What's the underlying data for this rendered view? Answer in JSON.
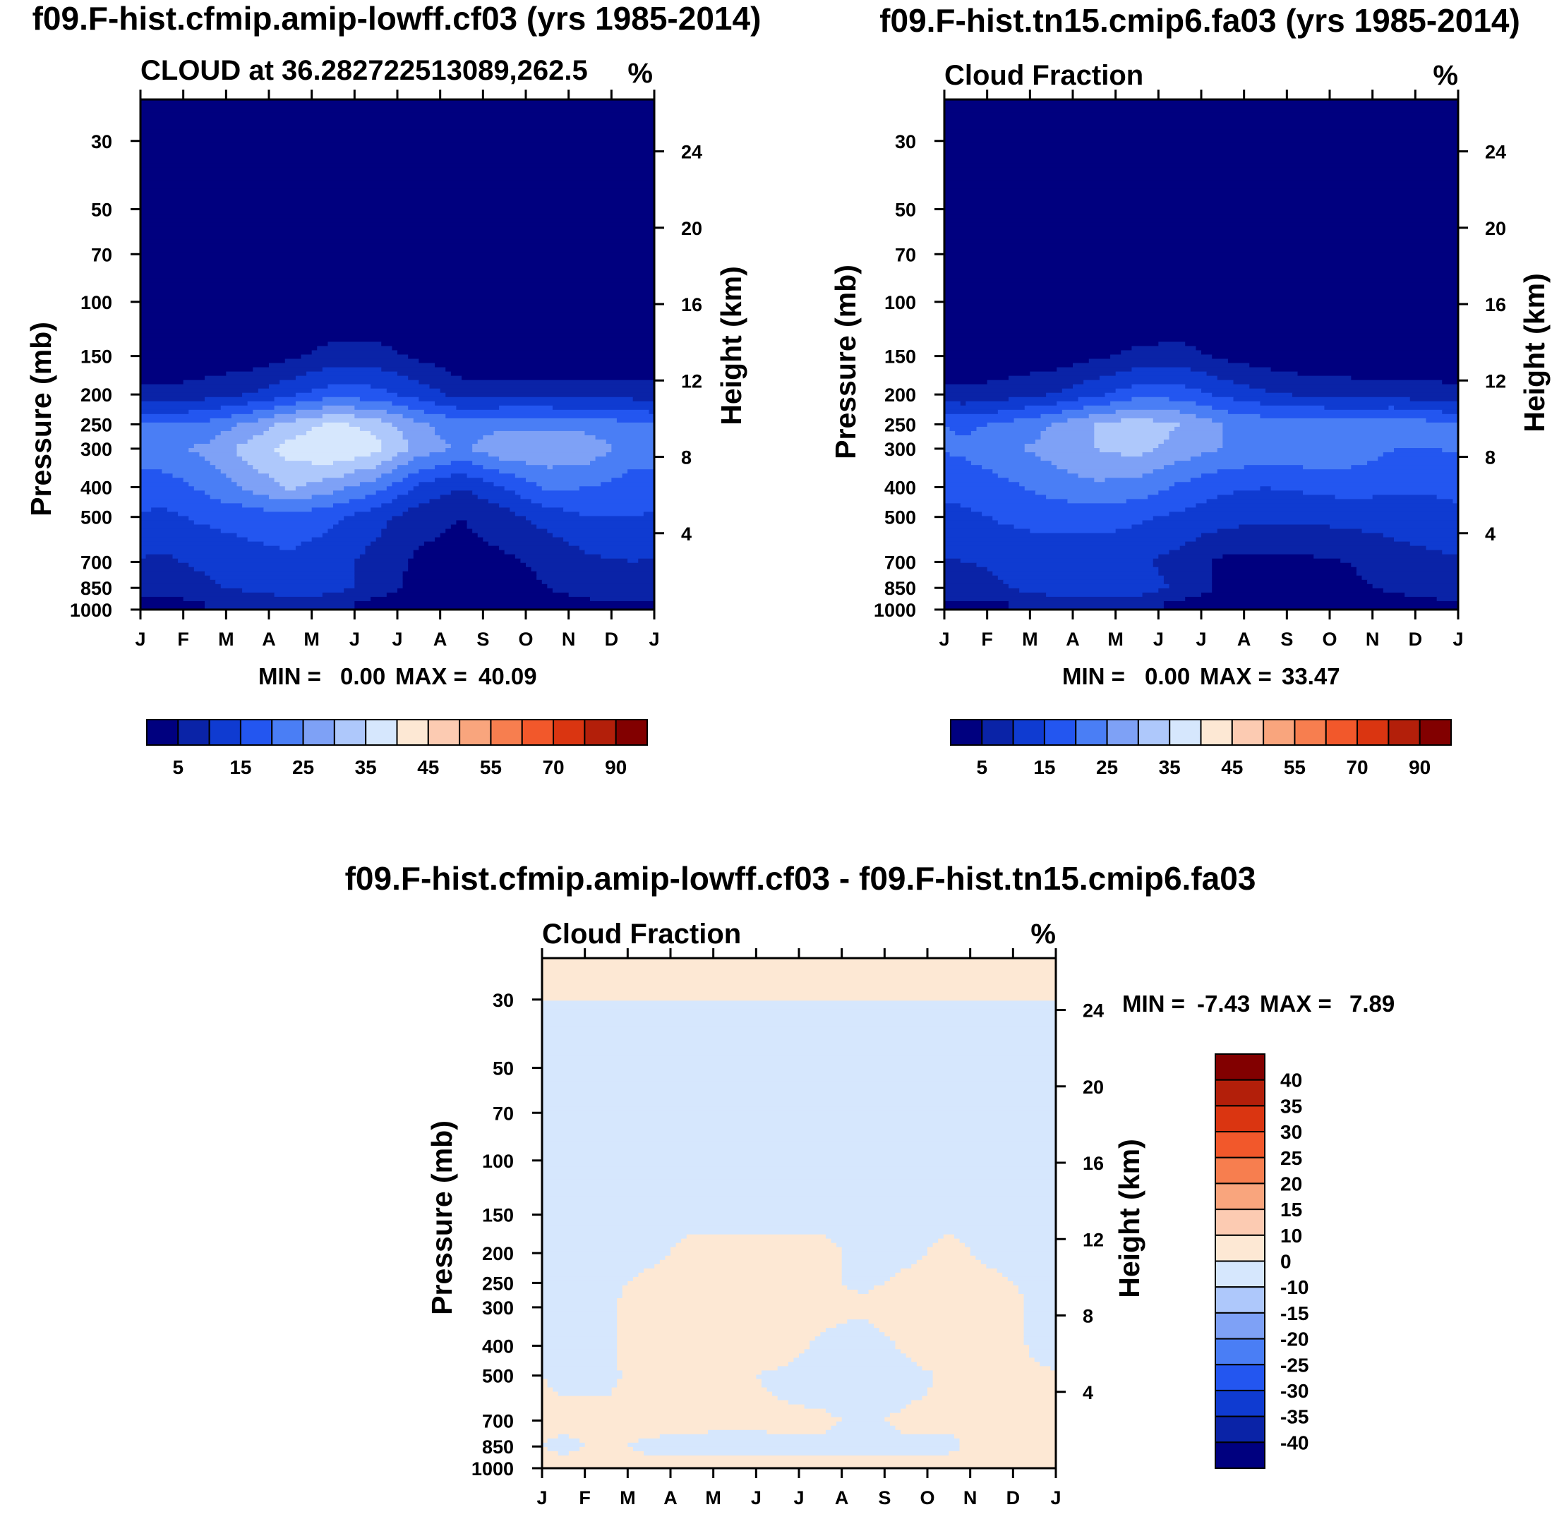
{
  "figure": {
    "panel_a_title": "f09.F-hist.cfmip.amip-lowff.cf03 (yrs 1985-2014)",
    "panel_b_title": "f09.F-hist.tn15.cmip6.fa03 (yrs 1985-2014)",
    "panel_c_title": "f09.F-hist.cfmip.amip-lowff.cf03 - f09.F-hist.tn15.cmip6.fa03"
  },
  "colors": {
    "full_scale": [
      "#00007f",
      "#0a23a7",
      "#0f3bd1",
      "#2356f0",
      "#4a7ef5",
      "#7ea1f6",
      "#aec8fb",
      "#d6e7fd",
      "#fde8d4",
      "#fccbb2",
      "#f9a57d",
      "#f77e4f",
      "#f2582b",
      "#da3511",
      "#b31f0a",
      "#820000"
    ],
    "diff_scale": [
      "#00007f",
      "#0a23a7",
      "#0f3bd1",
      "#2356f0",
      "#4a7ef5",
      "#7ea1f6",
      "#aec8fb",
      "#d6e7fd",
      "#fde8d4",
      "#fccbb2",
      "#f9a57d",
      "#f77e4f",
      "#f2582b",
      "#da3511",
      "#b31f0a",
      "#820000"
    ]
  },
  "chart_data": [
    {
      "type": "heatmap",
      "panel": "a",
      "title": "f09.F-hist.cfmip.amip-lowff.cf03 (yrs 1985-2014)",
      "left_label": "CLOUD at 36.282722513089,262.5",
      "units": "%",
      "xlabel": "",
      "ylabel": "Pressure (mb)",
      "y2label": "Height (km)",
      "x_ticks": [
        "J",
        "F",
        "M",
        "A",
        "M",
        "J",
        "J",
        "A",
        "S",
        "O",
        "N",
        "D",
        "J"
      ],
      "y_ticks": [
        30,
        50,
        70,
        100,
        150,
        200,
        250,
        300,
        400,
        500,
        700,
        850,
        1000
      ],
      "y_scale": "log",
      "ylim": [
        1000,
        22
      ],
      "y2_ticks": [
        24,
        20,
        16,
        12,
        8,
        4
      ],
      "min_label": "MIN =",
      "min_value": "0.00",
      "max_label": "MAX =",
      "max_value": "40.09",
      "levels": [
        0,
        5,
        10,
        15,
        20,
        25,
        30,
        35,
        40
      ],
      "colorbar_labels": [
        "5",
        "15",
        "25",
        "35",
        "45",
        "55",
        "70",
        "90"
      ],
      "months": [
        0.5,
        1.5,
        2.5,
        3.5,
        4.5,
        5.5,
        6.5,
        7.5,
        8.5,
        9.5,
        10.5,
        11.5
      ],
      "levels_p": [
        30,
        100,
        150,
        200,
        250,
        300,
        400,
        500,
        700,
        850,
        950
      ],
      "values": [
        [
          0,
          0,
          0,
          0,
          0,
          0,
          0,
          0,
          0,
          0,
          0,
          0
        ],
        [
          0,
          0,
          0,
          0,
          0,
          0,
          0,
          0,
          0,
          0,
          0,
          0
        ],
        [
          1,
          1,
          2,
          4,
          7,
          7,
          4,
          1,
          1,
          1,
          1,
          1
        ],
        [
          6,
          8,
          10,
          14,
          18,
          17,
          13,
          8,
          8,
          8,
          8,
          8
        ],
        [
          20,
          21,
          26,
          32,
          36,
          33,
          26,
          22,
          24,
          24,
          23,
          21
        ],
        [
          24,
          26,
          32,
          37,
          40,
          37,
          28,
          24,
          29,
          29,
          28,
          22
        ],
        [
          17,
          21,
          26,
          31,
          27,
          22,
          14,
          10,
          15,
          21,
          20,
          18
        ],
        [
          14,
          16,
          17,
          18,
          16,
          12,
          7,
          5,
          8,
          12,
          15,
          15
        ],
        [
          9,
          11,
          13,
          14,
          12,
          8,
          4,
          3,
          4,
          6,
          9,
          10
        ],
        [
          7,
          9,
          11,
          13,
          12,
          8,
          3,
          2,
          3,
          5,
          8,
          9
        ],
        [
          3,
          5,
          6,
          8,
          7,
          3,
          2,
          2,
          2,
          3,
          4,
          5
        ]
      ]
    },
    {
      "type": "heatmap",
      "panel": "b",
      "title": "f09.F-hist.tn15.cmip6.fa03 (yrs 1985-2014)",
      "left_label": "Cloud Fraction",
      "units": "%",
      "xlabel": "",
      "ylabel": "Pressure (mb)",
      "y2label": "Height (km)",
      "x_ticks": [
        "J",
        "F",
        "M",
        "A",
        "M",
        "J",
        "J",
        "A",
        "S",
        "O",
        "N",
        "D",
        "J"
      ],
      "y_ticks": [
        30,
        50,
        70,
        100,
        150,
        200,
        250,
        300,
        400,
        500,
        700,
        850,
        1000
      ],
      "y_scale": "log",
      "ylim": [
        1000,
        22
      ],
      "y2_ticks": [
        24,
        20,
        16,
        12,
        8,
        4
      ],
      "min_label": "MIN =",
      "min_value": "0.00",
      "max_label": "MAX =",
      "max_value": "33.47",
      "levels": [
        0,
        5,
        10,
        15,
        20,
        25,
        30,
        35
      ],
      "colorbar_labels": [
        "5",
        "15",
        "25",
        "35",
        "45",
        "55",
        "70",
        "90"
      ],
      "months": [
        0.5,
        1.5,
        2.5,
        3.5,
        4.5,
        5.5,
        6.5,
        7.5,
        8.5,
        9.5,
        10.5,
        11.5
      ],
      "levels_p": [
        30,
        100,
        150,
        200,
        250,
        300,
        400,
        500,
        700,
        850,
        950
      ],
      "values": [
        [
          0,
          0,
          0,
          0,
          0,
          0,
          0,
          0,
          0,
          0,
          0,
          0
        ],
        [
          0,
          0,
          0,
          0,
          0,
          0,
          0,
          0,
          0,
          0,
          0,
          0
        ],
        [
          1,
          1,
          2,
          4,
          6,
          7,
          4,
          2,
          1,
          1,
          1,
          1
        ],
        [
          6,
          8,
          10,
          14,
          18,
          18,
          14,
          11,
          9,
          8,
          8,
          7
        ],
        [
          19,
          21,
          25,
          30,
          33,
          30,
          25,
          23,
          23,
          23,
          24,
          21
        ],
        [
          21,
          24,
          27,
          30,
          32,
          28,
          25,
          23,
          24,
          23,
          20,
          20
        ],
        [
          17,
          19,
          22,
          24,
          23,
          19,
          16,
          15,
          16,
          17,
          16,
          16
        ],
        [
          14,
          16,
          17,
          17,
          16,
          14,
          12,
          11,
          11,
          12,
          12,
          13
        ],
        [
          10,
          11,
          12,
          12,
          11,
          8,
          4,
          4,
          4,
          5,
          8,
          9
        ],
        [
          8,
          10,
          13,
          14,
          13,
          9,
          4,
          3,
          3,
          4,
          6,
          8
        ],
        [
          4,
          5,
          7,
          8,
          7,
          4,
          2,
          2,
          2,
          3,
          3,
          4
        ]
      ]
    },
    {
      "type": "heatmap",
      "panel": "c",
      "title": "f09.F-hist.cfmip.amip-lowff.cf03 - f09.F-hist.tn15.cmip6.fa03",
      "left_label": "Cloud Fraction",
      "units": "%",
      "xlabel": "",
      "ylabel": "Pressure (mb)",
      "y2label": "Height (km)",
      "x_ticks": [
        "J",
        "F",
        "M",
        "A",
        "M",
        "J",
        "J",
        "A",
        "S",
        "O",
        "N",
        "D",
        "J"
      ],
      "y_ticks": [
        30,
        50,
        70,
        100,
        150,
        200,
        250,
        300,
        400,
        500,
        700,
        850,
        1000
      ],
      "y_scale": "log",
      "ylim": [
        1000,
        22
      ],
      "y2_ticks": [
        24,
        20,
        16,
        12,
        8,
        4
      ],
      "min_label": "MIN =",
      "min_value": "-7.43",
      "max_label": "MAX =",
      "max_value": "7.89",
      "levels": [
        -40,
        -35,
        -30,
        -25,
        -20,
        -15,
        -10,
        0,
        10,
        15,
        20,
        25,
        30,
        35,
        40
      ],
      "colorbar_labels": [
        "40",
        "35",
        "30",
        "25",
        "20",
        "15",
        "10",
        "0",
        "-10",
        "-15",
        "-20",
        "-25",
        "-30",
        "-35",
        "-40"
      ],
      "months": [
        0.5,
        1.5,
        2.5,
        3.5,
        4.5,
        5.5,
        6.5,
        7.5,
        8.5,
        9.5,
        10.5,
        11.5
      ],
      "levels_p": [
        30,
        100,
        150,
        200,
        250,
        300,
        400,
        500,
        700,
        850,
        950
      ],
      "values": [
        [
          0,
          0,
          0,
          0,
          0,
          0,
          0,
          0,
          0,
          0,
          0,
          0
        ],
        [
          -0.1,
          -0.1,
          -0.1,
          -0.1,
          -0.1,
          -0.1,
          -0.1,
          -0.1,
          -0.1,
          -0.1,
          -0.1,
          -0.1
        ],
        [
          -1,
          -1,
          -1,
          -1,
          -1,
          -1,
          -1,
          -1,
          -1,
          -1,
          -1,
          -1
        ],
        [
          -1,
          -1,
          -1,
          1,
          1,
          1,
          1,
          -1,
          -1,
          1,
          -1,
          -1
        ],
        [
          -1,
          -1,
          1,
          2,
          3,
          3,
          1,
          -1,
          1,
          1,
          1,
          -1
        ],
        [
          -1,
          -1,
          3,
          4,
          7,
          6,
          2,
          1,
          3,
          5,
          4,
          -1
        ],
        [
          -1,
          -1,
          3,
          5,
          4,
          3,
          -1,
          -3,
          1,
          4,
          4,
          -1
        ],
        [
          -1,
          -1,
          2,
          2,
          1,
          -1,
          -3,
          -4,
          -2,
          1,
          3,
          1
        ],
        [
          1,
          1,
          2,
          2,
          1,
          1,
          1,
          -1,
          1,
          1,
          1,
          1
        ],
        [
          -1,
          1,
          -1,
          -2,
          -2,
          -1,
          -1,
          -1,
          -1,
          -1,
          2,
          1
        ],
        [
          1,
          1,
          1,
          1,
          1,
          1,
          1,
          1,
          1,
          1,
          1,
          1
        ]
      ]
    }
  ]
}
